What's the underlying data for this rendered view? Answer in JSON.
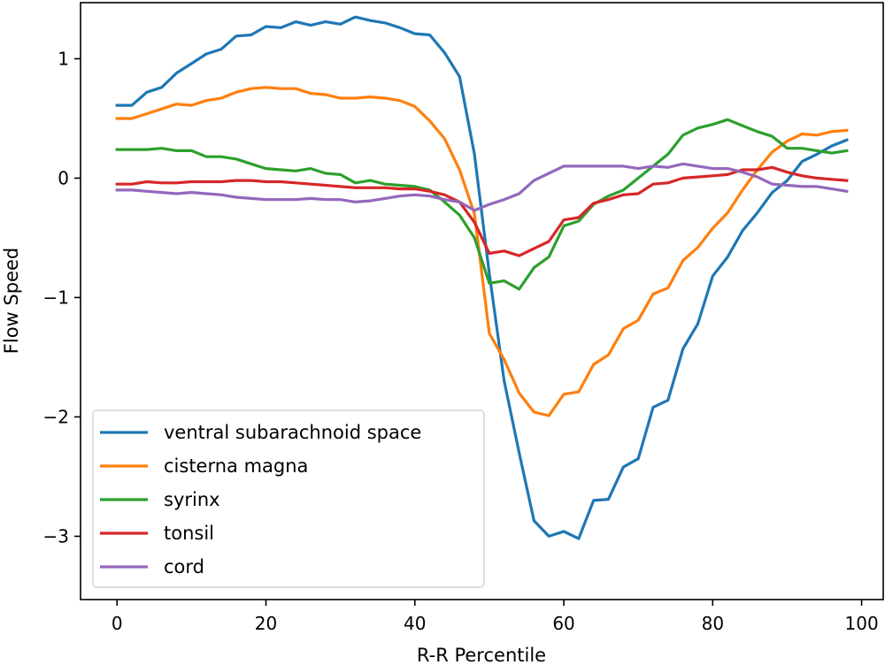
{
  "chart_data": {
    "type": "line",
    "xlabel": "R-R Percentile",
    "ylabel": "Flow Speed",
    "xlim": [
      -4.9,
      102.9
    ],
    "ylim": [
      -3.53,
      1.47
    ],
    "xticks": [
      0,
      20,
      40,
      60,
      80,
      100
    ],
    "xtick_labels": [
      "0",
      "20",
      "40",
      "60",
      "80",
      "100"
    ],
    "yticks": [
      1,
      0,
      -1,
      -2,
      -3
    ],
    "ytick_labels": [
      "1",
      "0",
      "−1",
      "−2",
      "−3"
    ],
    "grid": false,
    "legend_position": "lower-left",
    "x": [
      0,
      2,
      4,
      6,
      8,
      10,
      12,
      14,
      16,
      18,
      20,
      22,
      24,
      26,
      28,
      30,
      32,
      34,
      36,
      38,
      40,
      42,
      44,
      46,
      48,
      50,
      52,
      54,
      56,
      58,
      60,
      62,
      64,
      66,
      68,
      70,
      72,
      74,
      76,
      78,
      80,
      82,
      84,
      86,
      88,
      90,
      92,
      94,
      96,
      98
    ],
    "series": [
      {
        "name": "ventral subarachnoid space",
        "color": "#1f77b4",
        "values": [
          0.61,
          0.61,
          0.72,
          0.76,
          0.88,
          0.96,
          1.04,
          1.08,
          1.19,
          1.2,
          1.27,
          1.26,
          1.31,
          1.28,
          1.31,
          1.29,
          1.35,
          1.32,
          1.3,
          1.26,
          1.21,
          1.2,
          1.05,
          0.85,
          0.2,
          -0.8,
          -1.7,
          -2.3,
          -2.87,
          -3.0,
          -2.96,
          -3.02,
          -2.7,
          -2.69,
          -2.42,
          -2.35,
          -1.92,
          -1.86,
          -1.43,
          -1.22,
          -0.82,
          -0.66,
          -0.44,
          -0.29,
          -0.12,
          -0.02,
          0.14,
          0.2,
          0.27,
          0.32
        ]
      },
      {
        "name": "cisterna magna",
        "color": "#ff7f0e",
        "values": [
          0.5,
          0.5,
          0.54,
          0.58,
          0.62,
          0.61,
          0.65,
          0.67,
          0.72,
          0.75,
          0.76,
          0.75,
          0.75,
          0.71,
          0.7,
          0.67,
          0.67,
          0.68,
          0.67,
          0.65,
          0.6,
          0.48,
          0.33,
          0.07,
          -0.3,
          -1.3,
          -1.52,
          -1.8,
          -1.96,
          -1.99,
          -1.81,
          -1.79,
          -1.56,
          -1.48,
          -1.26,
          -1.19,
          -0.97,
          -0.92,
          -0.69,
          -0.58,
          -0.42,
          -0.29,
          -0.1,
          0.07,
          0.22,
          0.31,
          0.37,
          0.36,
          0.39,
          0.4
        ]
      },
      {
        "name": "syrinx",
        "color": "#2ca02c",
        "values": [
          0.24,
          0.24,
          0.24,
          0.25,
          0.23,
          0.23,
          0.18,
          0.18,
          0.16,
          0.12,
          0.08,
          0.07,
          0.06,
          0.08,
          0.04,
          0.03,
          -0.04,
          -0.02,
          -0.05,
          -0.06,
          -0.07,
          -0.1,
          -0.2,
          -0.31,
          -0.5,
          -0.88,
          -0.86,
          -0.93,
          -0.75,
          -0.66,
          -0.4,
          -0.36,
          -0.22,
          -0.15,
          -0.1,
          0.0,
          0.1,
          0.2,
          0.36,
          0.42,
          0.45,
          0.49,
          0.44,
          0.39,
          0.35,
          0.25,
          0.25,
          0.23,
          0.21,
          0.23
        ]
      },
      {
        "name": "tonsil",
        "color": "#d62728",
        "values": [
          -0.05,
          -0.05,
          -0.03,
          -0.04,
          -0.04,
          -0.03,
          -0.03,
          -0.03,
          -0.02,
          -0.02,
          -0.03,
          -0.03,
          -0.04,
          -0.05,
          -0.06,
          -0.07,
          -0.08,
          -0.08,
          -0.08,
          -0.09,
          -0.09,
          -0.11,
          -0.14,
          -0.2,
          -0.37,
          -0.63,
          -0.61,
          -0.65,
          -0.59,
          -0.53,
          -0.35,
          -0.33,
          -0.21,
          -0.18,
          -0.14,
          -0.13,
          -0.05,
          -0.04,
          0.0,
          0.01,
          0.02,
          0.03,
          0.07,
          0.07,
          0.09,
          0.05,
          0.02,
          0.0,
          -0.01,
          -0.02
        ]
      },
      {
        "name": "cord",
        "color": "#9467bd",
        "values": [
          -0.1,
          -0.1,
          -0.11,
          -0.12,
          -0.13,
          -0.12,
          -0.13,
          -0.14,
          -0.16,
          -0.17,
          -0.18,
          -0.18,
          -0.18,
          -0.17,
          -0.18,
          -0.18,
          -0.2,
          -0.19,
          -0.17,
          -0.15,
          -0.14,
          -0.15,
          -0.18,
          -0.2,
          -0.27,
          -0.22,
          -0.18,
          -0.13,
          -0.02,
          0.04,
          0.1,
          0.1,
          0.1,
          0.1,
          0.1,
          0.08,
          0.1,
          0.09,
          0.12,
          0.1,
          0.08,
          0.08,
          0.05,
          0.01,
          -0.05,
          -0.06,
          -0.07,
          -0.07,
          -0.09,
          -0.11
        ]
      }
    ]
  }
}
